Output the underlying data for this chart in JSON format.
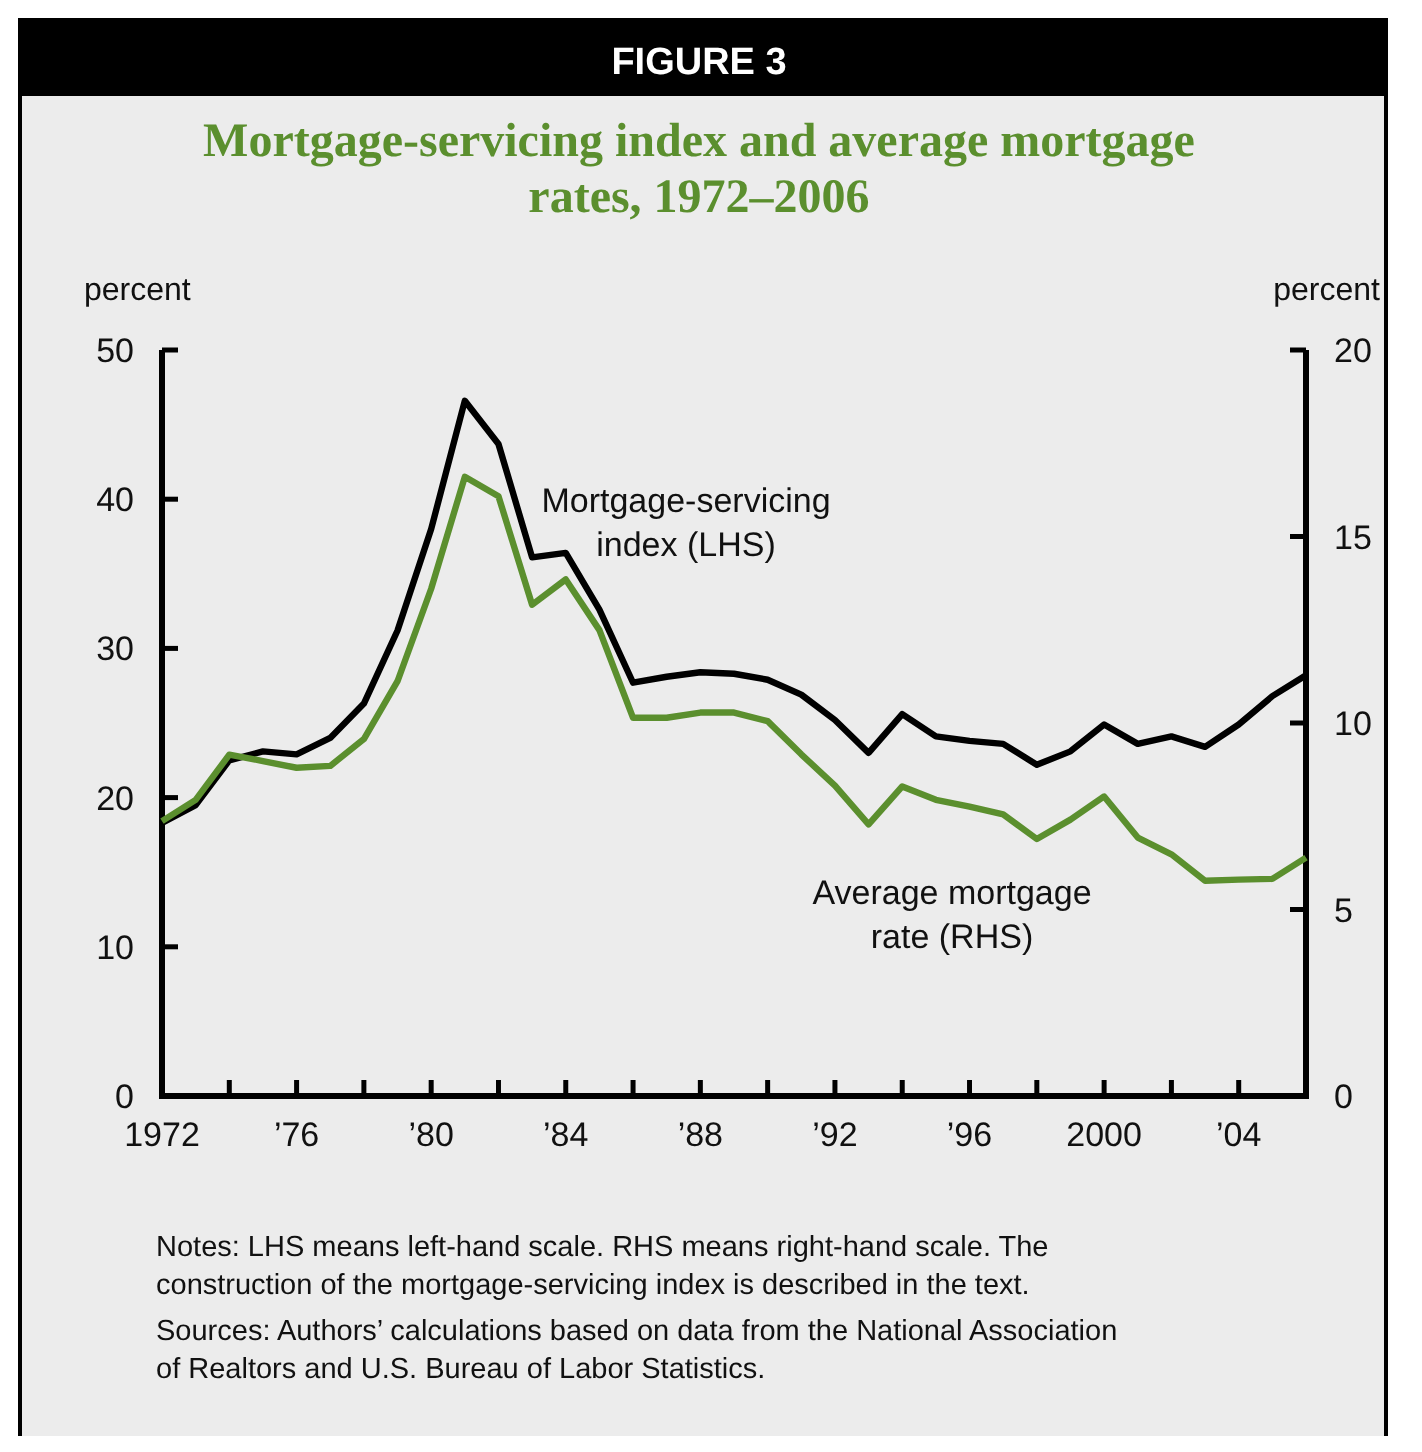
{
  "chart_data": {
    "type": "line",
    "title": "Mortgage-servicing index and average mortgage rates, 1972–2006",
    "ylabel": "percent",
    "y2label": "percent",
    "annotations": [
      "FIGURE 3",
      "Notes: LHS means left-hand scale. RHS means right-hand scale. The construction of the mortgage-servicing index is described in the text.",
      "Sources: Authors’ calculations based on data from the National Association of Realtors and U.S. Bureau of Labor Statistics."
    ],
    "x": [
      1972,
      1973,
      1974,
      1975,
      1976,
      1977,
      1978,
      1979,
      1980,
      1981,
      1982,
      1983,
      1984,
      1985,
      1986,
      1987,
      1988,
      1989,
      1990,
      1991,
      1992,
      1993,
      1994,
      1995,
      1996,
      1997,
      1998,
      1999,
      2000,
      2001,
      2002,
      2003,
      2004,
      2005,
      2006
    ],
    "xlim": [
      1972,
      2006
    ],
    "xticks": [
      1972,
      {
        "value": 1974,
        "label": null
      },
      {
        "value": 1976,
        "label": "’76"
      },
      {
        "value": 1978,
        "label": null
      },
      {
        "value": 1980,
        "label": "’80"
      },
      {
        "value": 1982,
        "label": null
      },
      {
        "value": 1984,
        "label": "’84"
      },
      {
        "value": 1986,
        "label": null
      },
      {
        "value": 1988,
        "label": "’88"
      },
      {
        "value": 1990,
        "label": null
      },
      {
        "value": 1992,
        "label": "’92"
      },
      {
        "value": 1994,
        "label": null
      },
      {
        "value": 1996,
        "label": "’96"
      },
      {
        "value": 1998,
        "label": null
      },
      2000,
      {
        "value": 2002,
        "label": null
      },
      {
        "value": 2004,
        "label": "’04"
      }
    ],
    "ylim": [
      0,
      50
    ],
    "yticks": [
      0,
      10,
      20,
      30,
      40,
      50
    ],
    "y2lim": [
      0,
      20
    ],
    "y2ticks": [
      0,
      5,
      10,
      15,
      20
    ],
    "series": [
      {
        "name": "Mortgage-servicing index (LHS)",
        "color": "#000000",
        "values": [
          18.3,
          19.5,
          22.5,
          23.1,
          22.9,
          24.0,
          26.3,
          31.2,
          38.0,
          46.6,
          43.7,
          36.1,
          36.4,
          32.6,
          27.7,
          28.1,
          28.4,
          28.3,
          27.9,
          26.9,
          25.2,
          23.0,
          25.6,
          24.1,
          23.8,
          23.6,
          22.2,
          23.1,
          24.9,
          23.6,
          24.1,
          23.4,
          24.9,
          26.8,
          28.2
        ]
      },
      {
        "name": "Average mortgage rate (RHS)",
        "color": "#5b8f2e",
        "axis": "y2",
        "values": [
          7.37,
          7.94,
          9.15,
          8.98,
          8.8,
          8.85,
          9.57,
          11.12,
          13.6,
          16.6,
          16.08,
          13.17,
          13.85,
          12.49,
          10.14,
          10.14,
          10.28,
          10.28,
          10.05,
          9.16,
          8.32,
          7.28,
          8.3,
          7.94,
          7.76,
          7.55,
          6.89,
          7.41,
          8.03,
          6.93,
          6.48,
          5.77,
          5.8,
          5.82,
          6.39
        ]
      }
    ]
  }
}
